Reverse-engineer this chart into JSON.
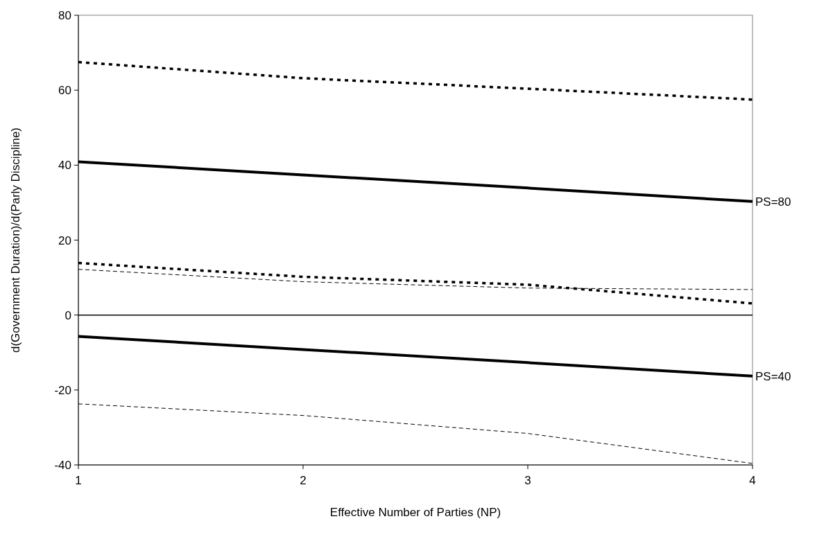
{
  "chart_data": {
    "type": "line",
    "xlabel": "Effective Number of Parties (NP)",
    "ylabel": "d(Government Duration)/d(Parly Discipline)",
    "x": [
      1,
      2,
      3,
      4
    ],
    "xlim": [
      1,
      4
    ],
    "xticks": [
      1,
      2,
      3,
      4
    ],
    "ylim": [
      -40,
      80
    ],
    "yticks": [
      -40,
      -20,
      0,
      20,
      40,
      60,
      80
    ],
    "grid": false,
    "ref_lines": [
      {
        "axis": "y",
        "value": 0,
        "color": "#000000",
        "line_style": "solid"
      }
    ],
    "series": [
      {
        "name": "PS=80",
        "color": "#000000",
        "line_style": "solid",
        "values": [
          40.9,
          37.4,
          33.9,
          30.3
        ]
      },
      {
        "color": "#000000",
        "line_style": "dotted",
        "values": [
          67.5,
          63.2,
          60.4,
          57.5
        ]
      },
      {
        "color": "#000000",
        "line_style": "dotted",
        "values": [
          13.9,
          10.2,
          8.1,
          3.1
        ]
      },
      {
        "name": "PS=40",
        "color": "#000000",
        "line_style": "solid",
        "values": [
          -5.7,
          -9.2,
          -12.7,
          -16.3
        ]
      },
      {
        "color": "#000000",
        "line_style": "dashed",
        "values": [
          12.2,
          8.9,
          7.2,
          6.8
        ]
      },
      {
        "color": "#000000",
        "line_style": "dashed",
        "values": [
          -23.7,
          -26.8,
          -31.6,
          -39.6
        ]
      }
    ]
  }
}
